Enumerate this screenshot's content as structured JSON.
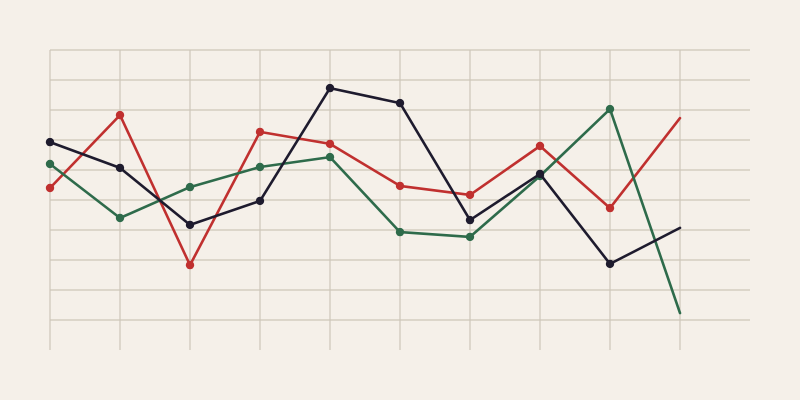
{
  "chart_data": {
    "type": "line",
    "title": "",
    "xlabel": "",
    "ylabel": "",
    "x": [
      0,
      1,
      2,
      3,
      4,
      5,
      6,
      7,
      8,
      9
    ],
    "xlim": [
      0,
      10
    ],
    "ylim": [
      -1,
      9
    ],
    "grid": true,
    "legend": "none",
    "background": "#f5f0e9",
    "grid_color": "#cdc6b9",
    "series": [
      {
        "color": "#c0302f",
        "markers_until": 8,
        "values": [
          4.4,
          6.83,
          1.83,
          6.27,
          5.87,
          4.47,
          4.17,
          5.8,
          3.73,
          6.73
        ]
      },
      {
        "color": "#2e6b4b",
        "markers_until": 8,
        "values": [
          5.2,
          3.4,
          4.43,
          5.1,
          5.43,
          2.93,
          2.77,
          4.8,
          7.03,
          0.23
        ]
      },
      {
        "color": "#1e1b2e",
        "markers_until": 8,
        "values": [
          5.93,
          5.07,
          3.17,
          3.97,
          7.73,
          7.23,
          3.33,
          4.87,
          1.87,
          3.07
        ]
      }
    ]
  }
}
